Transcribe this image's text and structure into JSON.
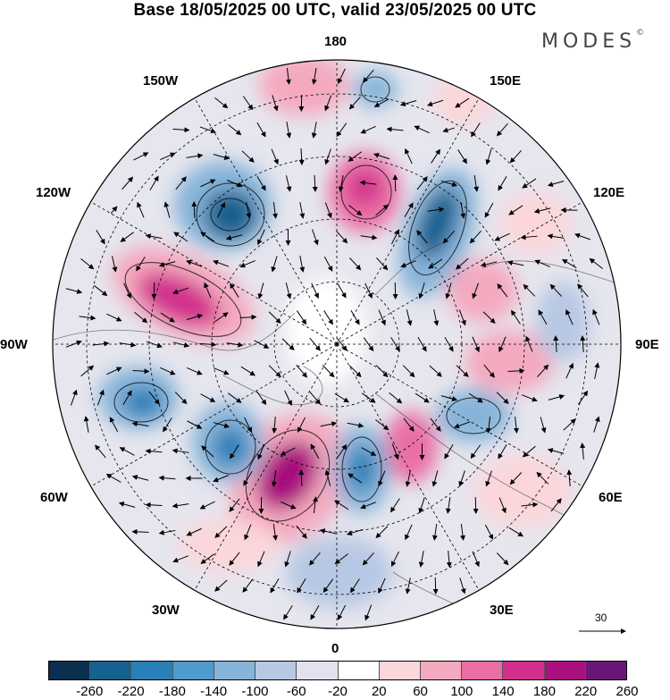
{
  "title": "Base 18/05/2025 00 UTC, valid 23/05/2025 00 UTC",
  "brand": {
    "name": "MODES",
    "mark": "©"
  },
  "longitude_labels": [
    "180",
    "150E",
    "120E",
    "90E",
    "60E",
    "30E",
    "0",
    "30W",
    "60W",
    "90W",
    "120W",
    "150W"
  ],
  "reference_vector": {
    "label": "30"
  },
  "colorbar": {
    "ticks": [
      "-260",
      "-220",
      "-180",
      "-140",
      "-100",
      "-60",
      "-20",
      "20",
      "60",
      "100",
      "140",
      "180",
      "220",
      "260"
    ],
    "colors": [
      "#0b2f4e",
      "#15618f",
      "#2a7fb8",
      "#4f9bcb",
      "#86b4d9",
      "#b7c8e4",
      "#e3e1f0",
      "#ffffff",
      "#fbd6da",
      "#f4a9bf",
      "#ea6ea6",
      "#d2308c",
      "#a8107e",
      "#6a1679"
    ]
  }
}
